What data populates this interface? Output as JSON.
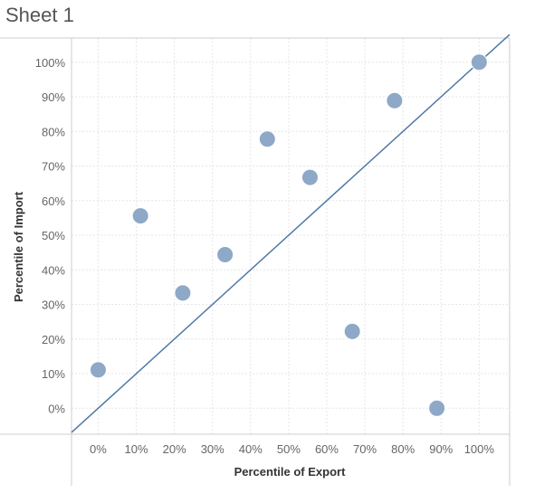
{
  "sheet": {
    "title": "Sheet 1"
  },
  "colors": {
    "marker": "#8ea8c7",
    "trend": "#4e79a7",
    "grid": "#e6e6e6",
    "axis": "#cccccc"
  },
  "chart_data": {
    "type": "scatter",
    "title": "",
    "xlabel": "Percentile of Export",
    "ylabel": "Percentile of Import",
    "xlim": [
      -7,
      108
    ],
    "ylim": [
      -7.5,
      107
    ],
    "xticks": [
      0,
      10,
      20,
      30,
      40,
      50,
      60,
      70,
      80,
      90,
      100
    ],
    "yticks": [
      0,
      10,
      20,
      30,
      40,
      50,
      60,
      70,
      80,
      90,
      100
    ],
    "xtick_labels": [
      "0%",
      "10%",
      "20%",
      "30%",
      "40%",
      "50%",
      "60%",
      "70%",
      "80%",
      "90%",
      "100%"
    ],
    "ytick_labels": [
      "0%",
      "10%",
      "20%",
      "30%",
      "40%",
      "50%",
      "60%",
      "70%",
      "80%",
      "90%",
      "100%"
    ],
    "grid": true,
    "points": [
      {
        "x": 0,
        "y": 11.1
      },
      {
        "x": 11.1,
        "y": 55.6
      },
      {
        "x": 22.2,
        "y": 33.3
      },
      {
        "x": 33.3,
        "y": 44.4
      },
      {
        "x": 44.4,
        "y": 77.8
      },
      {
        "x": 55.6,
        "y": 66.7
      },
      {
        "x": 66.7,
        "y": 22.2
      },
      {
        "x": 77.8,
        "y": 88.9
      },
      {
        "x": 88.9,
        "y": 0
      },
      {
        "x": 100,
        "y": 100
      }
    ],
    "trend_line": {
      "x": [
        -7,
        108
      ],
      "y": [
        -7,
        108
      ]
    }
  }
}
